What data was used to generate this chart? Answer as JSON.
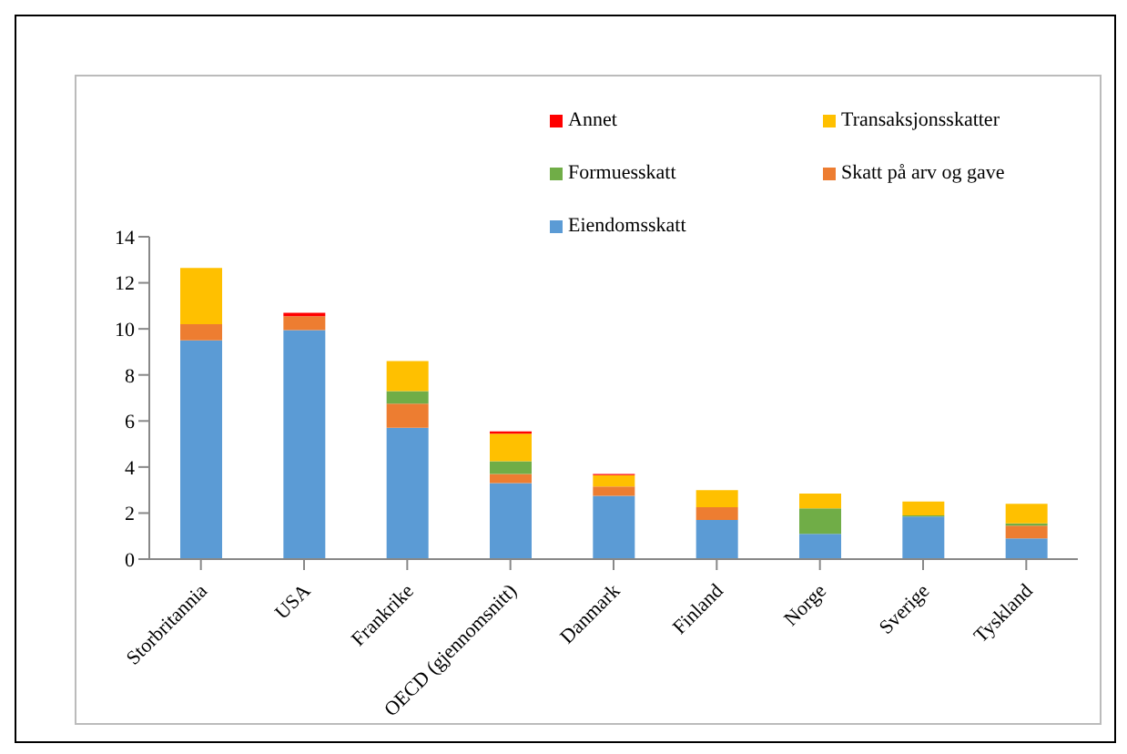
{
  "chart_data": {
    "type": "bar",
    "stacked": true,
    "categories": [
      "Storbritannia",
      "USA",
      "Frankrike",
      "OECD (gjennomsnitt)",
      "Danmark",
      "Finland",
      "Norge",
      "Sverige",
      "Tyskland"
    ],
    "series": [
      {
        "name": "Eiendomsskatt",
        "color": "#5b9bd5",
        "values": [
          9.5,
          9.95,
          5.7,
          3.3,
          2.75,
          1.7,
          1.1,
          1.85,
          0.9
        ]
      },
      {
        "name": "Skatt på arv og gave",
        "color": "#ed7d31",
        "values": [
          0.7,
          0.6,
          1.05,
          0.4,
          0.4,
          0.55,
          0,
          0,
          0.55
        ]
      },
      {
        "name": "Formuesskatt",
        "color": "#70ad47",
        "values": [
          0,
          0,
          0.55,
          0.55,
          0,
          0,
          1.1,
          0.05,
          0.1
        ]
      },
      {
        "name": "Transaksjonsskatter",
        "color": "#ffc000",
        "values": [
          2.45,
          0,
          1.3,
          1.2,
          0.5,
          0.75,
          0.65,
          0.6,
          0.85
        ]
      },
      {
        "name": "Annet",
        "color": "#ff0000",
        "values": [
          0,
          0.15,
          0,
          0.1,
          0.05,
          0,
          0,
          0,
          0
        ]
      }
    ],
    "ylim": [
      0,
      14
    ],
    "yticks": [
      0,
      2,
      4,
      6,
      8,
      10,
      12,
      14
    ],
    "grid": false,
    "legend": "top right"
  }
}
